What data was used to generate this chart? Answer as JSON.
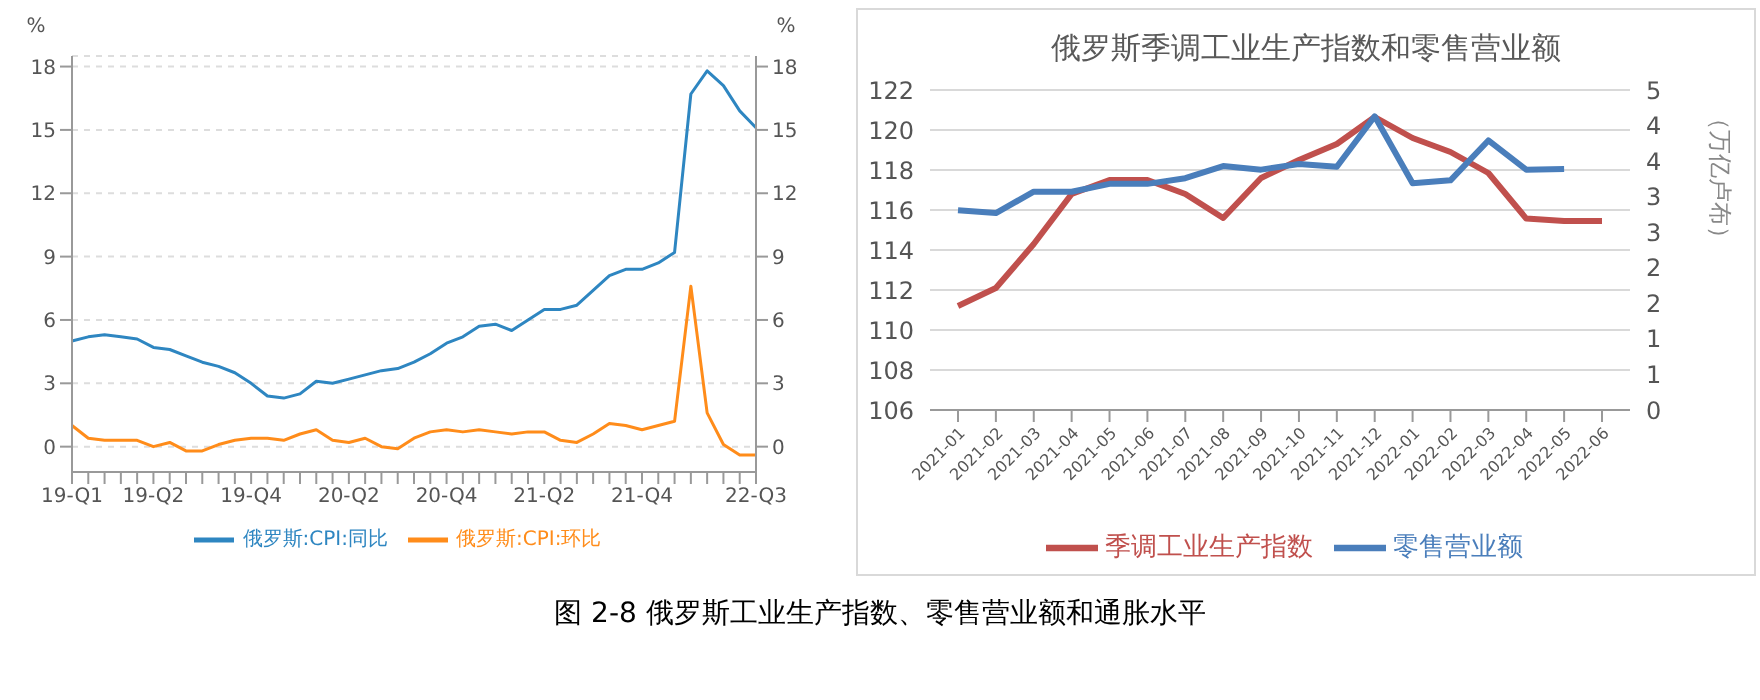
{
  "chart_data": [
    {
      "type": "line",
      "annotations": [
        "图 2-8 俄罗斯工业生产指数、零售营业额和通胀水平"
      ],
      "ylabel": "%",
      "y2label": "%",
      "categories": [
        "19-Q1",
        null,
        null,
        null,
        null,
        "19-Q2",
        null,
        null,
        null,
        null,
        null,
        "19-Q4",
        null,
        null,
        null,
        null,
        null,
        "20-Q2",
        null,
        null,
        null,
        null,
        null,
        "20-Q4",
        null,
        null,
        null,
        null,
        null,
        "21-Q2",
        null,
        null,
        null,
        null,
        null,
        "21-Q4",
        null,
        null,
        null,
        null,
        null,
        null,
        "22-Q3"
      ],
      "series": [
        {
          "name": "俄罗斯:CPI:同比",
          "color": "#2e86c1",
          "values": [
            5.0,
            5.2,
            5.3,
            5.2,
            5.1,
            4.7,
            4.6,
            4.3,
            4.0,
            3.8,
            3.5,
            3.0,
            2.4,
            2.3,
            2.5,
            3.1,
            3.0,
            3.2,
            3.4,
            3.6,
            3.7,
            4.0,
            4.4,
            4.9,
            5.2,
            5.7,
            5.8,
            5.5,
            6.0,
            6.5,
            6.5,
            6.7,
            7.4,
            8.1,
            8.4,
            8.4,
            8.7,
            9.2,
            16.7,
            17.8,
            17.1,
            15.9,
            15.1
          ]
        },
        {
          "name": "俄罗斯:CPI:环比",
          "color": "#ff8c1a",
          "values": [
            1.0,
            0.4,
            0.3,
            0.3,
            0.3,
            0.0,
            0.2,
            -0.2,
            -0.2,
            0.1,
            0.3,
            0.4,
            0.4,
            0.3,
            0.6,
            0.8,
            0.3,
            0.2,
            0.4,
            0.0,
            -0.1,
            0.4,
            0.7,
            0.8,
            0.7,
            0.8,
            0.7,
            0.6,
            0.7,
            0.7,
            0.3,
            0.2,
            0.6,
            1.1,
            1.0,
            0.8,
            1.0,
            1.2,
            7.6,
            1.6,
            0.1,
            -0.4,
            -0.4
          ]
        }
      ],
      "ylim": [
        -1.2,
        18.5
      ],
      "yticks": [
        0,
        3,
        6,
        9,
        12,
        15,
        18
      ],
      "y2lim": [
        -1.2,
        18.5
      ],
      "y2ticks": [
        0,
        3,
        6,
        9,
        12,
        15,
        18
      ],
      "grid": "y",
      "line_style": "solid",
      "legend": "bottom"
    },
    {
      "type": "line",
      "title": "俄罗斯季调工业生产指数和零售营业额",
      "y2label": "（万亿卢布）",
      "categories": [
        "2021-01",
        "2021-02",
        "2021-03",
        "2021-04",
        "2021-05",
        "2021-06",
        "2021-07",
        "2021-08",
        "2021-09",
        "2021-10",
        "2021-11",
        "2021-12",
        "2022-01",
        "2022-02",
        "2022-03",
        "2022-04",
        "2022-05",
        "2022-06"
      ],
      "series": [
        {
          "name": "季调工业生产指数",
          "color": "#c0504d",
          "values": [
            111.2,
            112.1,
            114.3,
            116.8,
            117.5,
            117.5,
            116.8,
            115.6,
            117.6,
            118.5,
            119.3,
            120.65,
            119.6,
            118.9,
            117.85,
            115.57,
            115.45,
            115.45
          ]
        },
        {
          "name": "零售营业额",
          "color": "#4a7ebb",
          "axis": "y2",
          "values": [
            2.81,
            2.77,
            3.07,
            3.07,
            3.18,
            3.18,
            3.26,
            3.43,
            3.38,
            3.46,
            3.42,
            4.13,
            3.19,
            3.23,
            3.79,
            3.38,
            3.39,
            null
          ]
        }
      ],
      "ylim": [
        106,
        122
      ],
      "yticks": [
        106,
        108,
        110,
        112,
        114,
        116,
        118,
        120,
        122
      ],
      "y2lim": [
        0,
        4.5
      ],
      "y2ticks": [
        0,
        {
          "value": 0.5,
          "label": "1"
        },
        1,
        {
          "value": 1.5,
          "label": "2"
        },
        2,
        {
          "value": 2.5,
          "label": "3"
        },
        3,
        {
          "value": 3.5,
          "label": "4"
        },
        4,
        {
          "value": 4.5,
          "label": "5"
        }
      ],
      "grid": "y",
      "line_style": "solid",
      "legend": "bottom"
    }
  ]
}
